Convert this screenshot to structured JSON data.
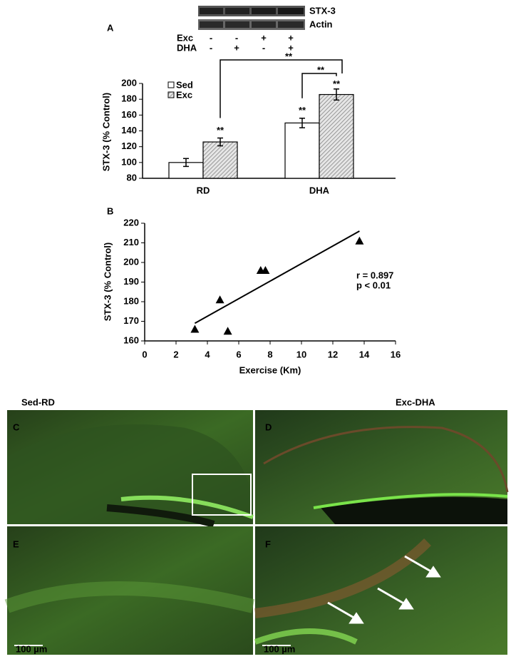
{
  "chart_data": [
    {
      "type": "bar",
      "panel_label": "A",
      "y_label": "STX-3 (% Control)",
      "blot": {
        "labels": [
          "STX-3",
          "Actin"
        ],
        "rows": [
          {
            "name": "Exc",
            "signs": [
              "-",
              "-",
              "+",
              "+"
            ]
          },
          {
            "name": "DHA",
            "signs": [
              "-",
              "+",
              "-",
              "+"
            ]
          }
        ]
      },
      "categories": [
        "RD",
        "DHA"
      ],
      "series": [
        {
          "name": "Sed",
          "color": "#ffffff",
          "hatch": false,
          "values": [
            100,
            150
          ],
          "errors": [
            5,
            6
          ]
        },
        {
          "name": "Exc",
          "color": "#9a9a9a",
          "hatch": true,
          "values": [
            126,
            186
          ],
          "errors": [
            5,
            7
          ]
        }
      ],
      "annotations": [
        "**",
        "**",
        "**",
        "**",
        "**"
      ],
      "ylim": [
        80,
        200
      ],
      "yticks": [
        80,
        100,
        120,
        140,
        160,
        180,
        200
      ],
      "grid": false,
      "legend": "upper left"
    },
    {
      "type": "scatter",
      "panel_label": "B",
      "x_label": "Exercise (Km)",
      "y_label": "STX-3 (% Control)",
      "x": [
        3.2,
        4.8,
        5.3,
        7.4,
        7.7,
        13.7
      ],
      "y": [
        166,
        181,
        165,
        196,
        196,
        211
      ],
      "color": "#000000",
      "fit": {
        "x": [
          3.2,
          13.7
        ],
        "y": [
          169,
          216
        ]
      },
      "annotations": [
        "r = 0.897",
        "p < 0.01"
      ],
      "xlim": [
        0,
        16
      ],
      "xticks": [
        0,
        2,
        4,
        6,
        8,
        10,
        12,
        14,
        16
      ],
      "ylim": [
        160,
        220
      ],
      "yticks": [
        160,
        170,
        180,
        190,
        200,
        210,
        220
      ],
      "grid": false
    }
  ],
  "images": {
    "columns": [
      "Sed-RD",
      "Exc-DHA"
    ],
    "panels": [
      "C",
      "D",
      "E",
      "F"
    ],
    "scale_bars": [
      "100 µm",
      "100 µm"
    ]
  }
}
